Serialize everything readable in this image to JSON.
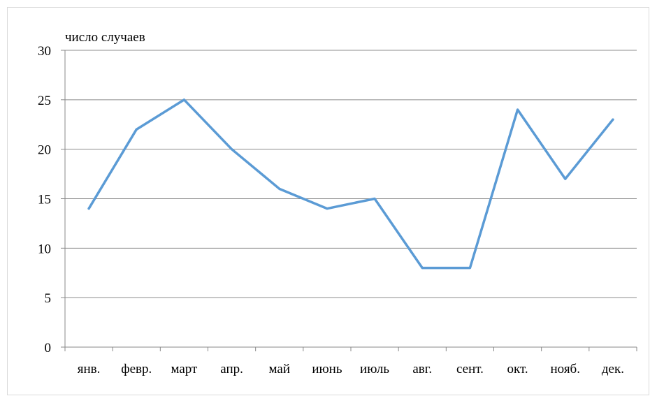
{
  "chart_data": {
    "type": "line",
    "ylabel": "число случаев",
    "categories": [
      "янв.",
      "февр.",
      "март",
      "апр.",
      "май",
      "июнь",
      "июль",
      "авг.",
      "сент.",
      "окт.",
      "нояб.",
      "дек."
    ],
    "series": [
      {
        "values": [
          14,
          22,
          25,
          20,
          16,
          14,
          15,
          8,
          8,
          24,
          17,
          23
        ],
        "color": "#5b9bd5"
      }
    ],
    "ylim": [
      0,
      30
    ],
    "yticks": [
      0,
      5,
      10,
      15,
      20,
      25,
      30
    ],
    "grid": true,
    "legend": "none"
  }
}
